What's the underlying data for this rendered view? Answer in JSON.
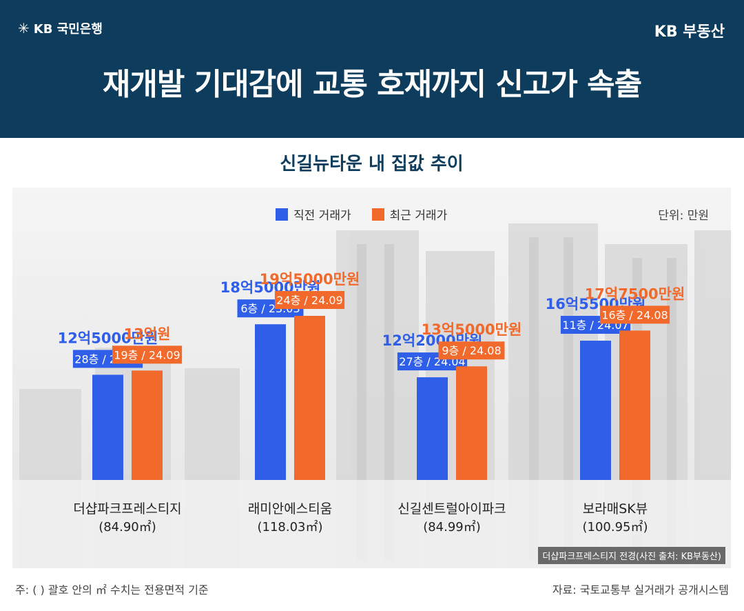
{
  "brand": {
    "bank_name": "KB 국민은행",
    "bank_icon": "kb-star-icon",
    "estate_name": "KB 부동산"
  },
  "headline": "재개발 기대감에 교통 호재까지 신고가 속출",
  "colors": {
    "header_bg": "#0e3c5c",
    "previous": "#2f5fe9",
    "recent": "#f26a2b"
  },
  "chart_data": {
    "type": "bar",
    "title": "신길뉴타운 내 집값 추이",
    "unit_label": "단위: 만원",
    "legend_position": "top-center",
    "ylim": [
      0,
      22000
    ],
    "categories": [
      {
        "name": "더샵파크프레스티지",
        "area": "(84.90㎡)"
      },
      {
        "name": "래미안에스티움",
        "area": "(118.03㎡)"
      },
      {
        "name": "신길센트럴아이파크",
        "area": "(84.99㎡)"
      },
      {
        "name": "보라매SK뷰",
        "area": "(100.95㎡)"
      }
    ],
    "series": [
      {
        "name": "직전 거래가",
        "values": [
          125000,
          185000,
          122000,
          165500
        ],
        "value_labels": [
          "12억5000만원",
          "18억5000만원",
          "12억2000만원",
          "16억5500만원"
        ],
        "detail_labels": [
          "28층 / 24.07",
          "6층 / 23.03",
          "27층 / 24.04",
          "11층 / 24.07"
        ]
      },
      {
        "name": "최근 거래가",
        "values": [
          130000,
          195000,
          135000,
          177500
        ],
        "value_labels": [
          "13억원",
          "19억5000만원",
          "13억5000만원",
          "17억7500만원"
        ],
        "detail_labels": [
          "19층 / 24.09",
          "24층 / 24.09",
          "9층 / 24.08",
          "16층 / 24.08"
        ]
      }
    ]
  },
  "photo_credit": "더샵파크프레스티지 전경(사진 출처: KB부동산)",
  "footnote": "주: ( ) 괄호 안의 ㎡ 수치는 전용면적 기준",
  "source": "자료: 국토교통부 실거래가 공개시스템"
}
